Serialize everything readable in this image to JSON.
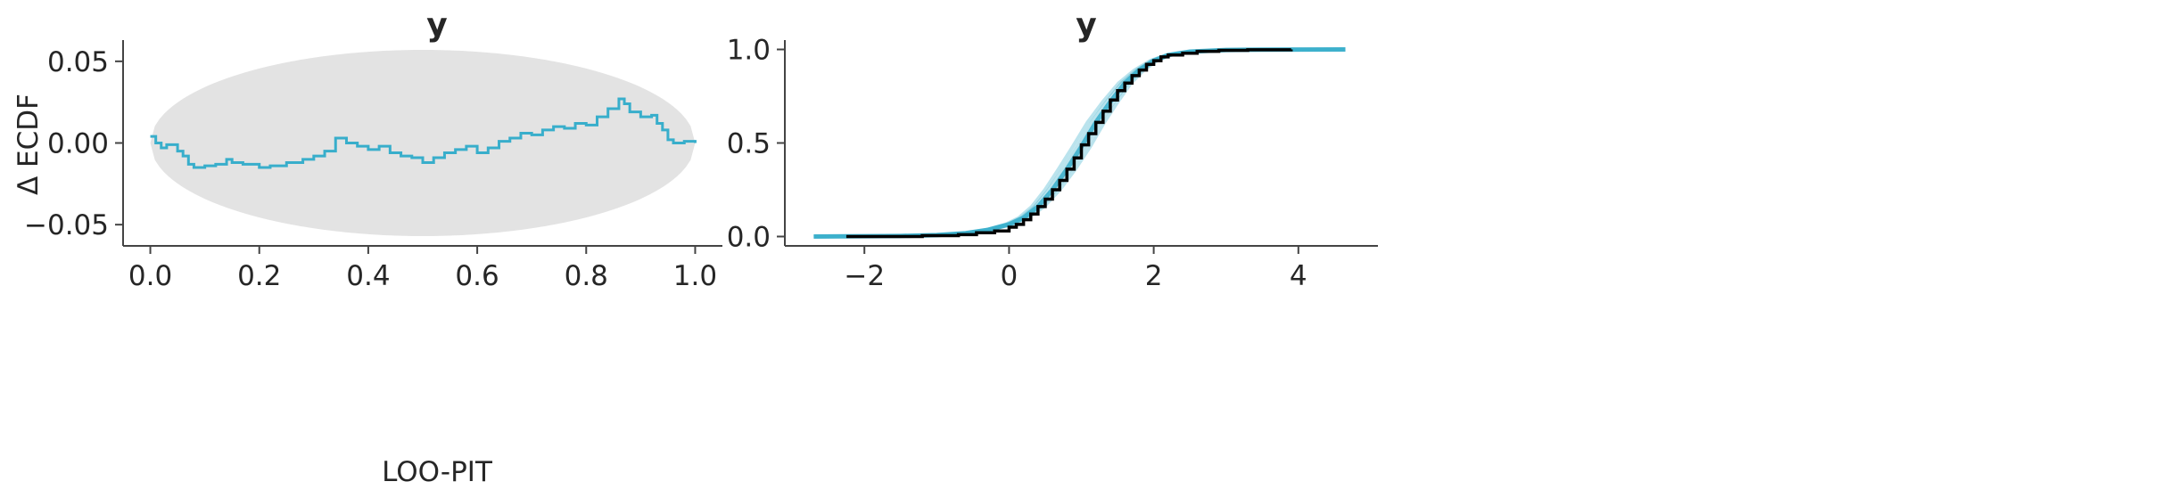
{
  "chart_data": [
    {
      "type": "line",
      "title": "y",
      "xlabel": "LOO-PIT",
      "ylabel": "Δ ECDF",
      "xlim": [
        -0.05,
        1.05
      ],
      "ylim": [
        -0.063,
        0.063
      ],
      "xticks": [
        "0.0",
        "0.2",
        "0.4",
        "0.6",
        "0.8",
        "1.0"
      ],
      "xtick_values": [
        0,
        0.2,
        0.4,
        0.6,
        0.8,
        1.0
      ],
      "yticks": [
        "−0.05",
        "0.00",
        "0.05"
      ],
      "ytick_values": [
        -0.05,
        0,
        0.05
      ],
      "grid": false,
      "band": {
        "description_free": true,
        "max_half_width": 0.057,
        "color": "#e3e3e3"
      },
      "series": [
        {
          "color": "#38aecb",
          "step": true,
          "x": [
            0,
            0.01,
            0.02,
            0.03,
            0.05,
            0.06,
            0.07,
            0.08,
            0.1,
            0.12,
            0.14,
            0.15,
            0.17,
            0.2,
            0.22,
            0.25,
            0.28,
            0.3,
            0.32,
            0.34,
            0.36,
            0.38,
            0.4,
            0.42,
            0.44,
            0.46,
            0.48,
            0.5,
            0.52,
            0.54,
            0.56,
            0.58,
            0.6,
            0.62,
            0.64,
            0.66,
            0.68,
            0.7,
            0.72,
            0.74,
            0.76,
            0.78,
            0.8,
            0.82,
            0.84,
            0.86,
            0.87,
            0.88,
            0.9,
            0.92,
            0.93,
            0.94,
            0.95,
            0.96,
            0.98,
            1.0
          ],
          "y": [
            0.004,
            0.0,
            -0.003,
            -0.001,
            -0.005,
            -0.008,
            -0.013,
            -0.015,
            -0.014,
            -0.013,
            -0.01,
            -0.012,
            -0.013,
            -0.015,
            -0.014,
            -0.012,
            -0.01,
            -0.008,
            -0.005,
            0.003,
            0.0,
            -0.002,
            -0.004,
            -0.002,
            -0.006,
            -0.008,
            -0.009,
            -0.012,
            -0.009,
            -0.006,
            -0.004,
            -0.002,
            -0.006,
            -0.003,
            0.001,
            0.003,
            0.006,
            0.005,
            0.008,
            0.01,
            0.009,
            0.012,
            0.011,
            0.016,
            0.021,
            0.027,
            0.024,
            0.019,
            0.016,
            0.017,
            0.012,
            0.008,
            0.002,
            0.0,
            0.001,
            0.0
          ]
        }
      ]
    },
    {
      "type": "line",
      "title": "y",
      "xlabel": "",
      "ylabel": "",
      "xlim": [
        -3.1,
        5.1
      ],
      "ylim": [
        -0.05,
        1.05
      ],
      "xticks": [
        "−2",
        "0",
        "2",
        "4"
      ],
      "xtick_values": [
        -2,
        0,
        2,
        4
      ],
      "yticks": [
        "0.0",
        "0.5",
        "1.0"
      ],
      "ytick_values": [
        0,
        0.5,
        1.0
      ],
      "grid": false,
      "series": [
        {
          "role": "predictive",
          "color": "#38aecb",
          "x": [
            -2.7,
            -1.5,
            -1.0,
            -0.6,
            -0.3,
            0,
            0.2,
            0.4,
            0.6,
            0.8,
            1.0,
            1.2,
            1.4,
            1.6,
            1.8,
            2.0,
            2.2,
            2.5,
            3.0,
            3.5,
            4.65
          ],
          "y": [
            0,
            0.003,
            0.008,
            0.018,
            0.035,
            0.065,
            0.1,
            0.16,
            0.25,
            0.36,
            0.48,
            0.61,
            0.72,
            0.82,
            0.89,
            0.94,
            0.97,
            0.988,
            0.997,
            0.999,
            1.0
          ]
        },
        {
          "role": "observed",
          "color": "#000000",
          "step": true,
          "x": [
            -2.25,
            -1.2,
            -0.7,
            -0.45,
            -0.2,
            0,
            0.1,
            0.2,
            0.3,
            0.4,
            0.5,
            0.6,
            0.7,
            0.8,
            0.9,
            1.0,
            1.1,
            1.2,
            1.3,
            1.4,
            1.5,
            1.6,
            1.7,
            1.8,
            1.9,
            2.0,
            2.1,
            2.2,
            2.4,
            2.6,
            2.9,
            3.3,
            3.9
          ],
          "y": [
            0,
            0.005,
            0.01,
            0.02,
            0.03,
            0.05,
            0.065,
            0.09,
            0.12,
            0.16,
            0.2,
            0.25,
            0.3,
            0.36,
            0.42,
            0.49,
            0.55,
            0.61,
            0.67,
            0.73,
            0.78,
            0.82,
            0.86,
            0.89,
            0.92,
            0.94,
            0.96,
            0.97,
            0.98,
            0.99,
            0.995,
            0.998,
            1.0
          ]
        }
      ]
    }
  ]
}
